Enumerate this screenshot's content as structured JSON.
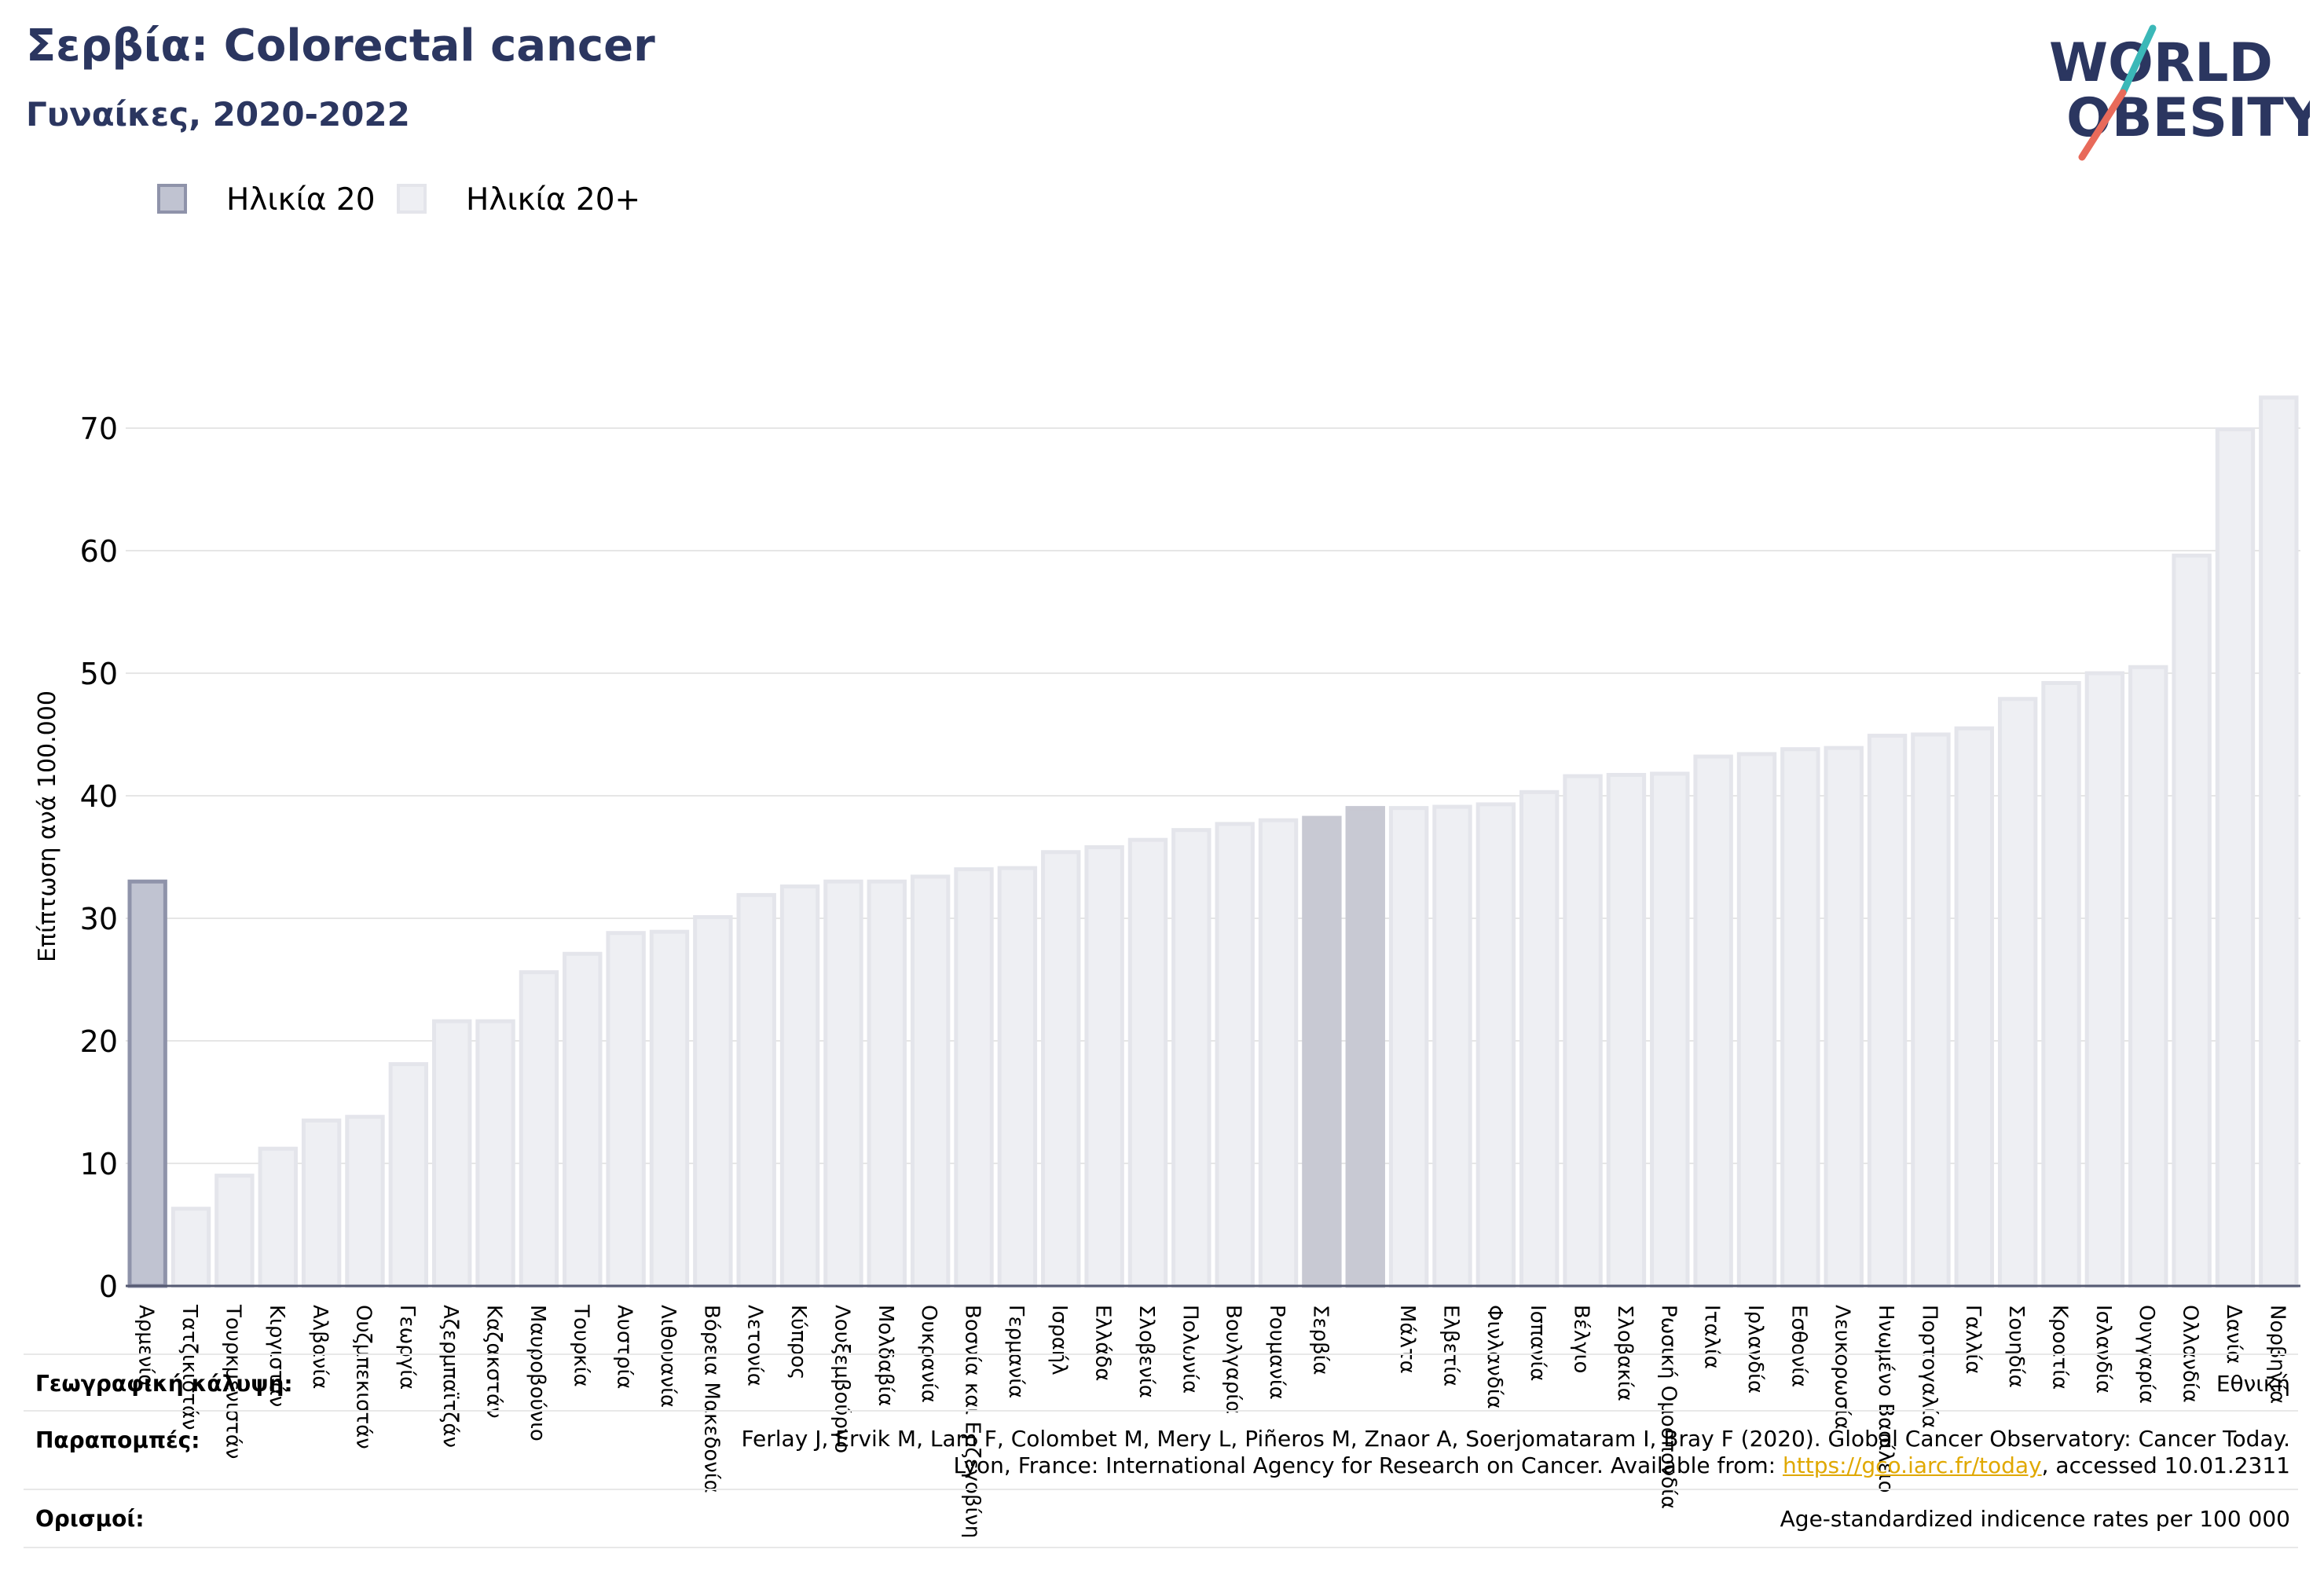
{
  "header": {
    "title": "Σερβία: Colorectal cancer",
    "subtitle": "Γυναίκες, 2020-2022"
  },
  "logo": {
    "line1": "WORLD",
    "line2": "OBESITY",
    "icon": "world-obesity-logo"
  },
  "legend": {
    "items": [
      {
        "label": "Ηλικία 20",
        "color": "#c0c3d1",
        "border": "#8f93aa"
      },
      {
        "label": "Ηλικία 20+",
        "color": "#eeeff3",
        "border": "#e4e5eb"
      }
    ]
  },
  "chart_data": {
    "type": "bar",
    "ylabel": "Επίπτωση ανά 100.000",
    "xlabel": "",
    "ylim": [
      0,
      75
    ],
    "yticks": [
      0,
      10,
      20,
      30,
      40,
      50,
      60,
      70
    ],
    "grid": true,
    "legend_position": "top-left",
    "categories": [
      "Αρμενία",
      "Τατζικιστάν",
      "Τουρκμενιστάν",
      "Κιργιστάν",
      "Αλβανία",
      "Ουζμπεκιστάν",
      "Γεωργία",
      "Αζερμπαϊτζάν",
      "Καζακστάν",
      "Μαυροβούνιο",
      "Τουρκία",
      "Αυστρία",
      "Λιθουανία",
      "Βόρεια Μακεδονία",
      "Λετονία",
      "Κύπρος",
      "Λουξεμβούργο",
      "Μολδαβία",
      "Ουκρανία",
      "Βοσνία και Ερζεγοβίνη",
      "Γερμανία",
      "Ισραήλ",
      "Ελλάδα",
      "Σλοβενία",
      "Πολωνία",
      "Βουλγαρία",
      "Ρουμανία",
      "Σερβία",
      "",
      "Μάλτα",
      "Ελβετία",
      "Φινλανδία",
      "Ισπανία",
      "Βέλγιο",
      "Σλοβακία",
      "Ρωσική Ομοσπονδία",
      "Ιταλία",
      "Ιρλανδία",
      "Εσθονία",
      "Λευκορωσία",
      "Ηνωμένο Βασίλειο",
      "Πορτογαλία",
      "Γαλλία",
      "Σουηδία",
      "Κροατία",
      "Ισλανδία",
      "Ουγγαρία",
      "Ολλανδία",
      "Δανία",
      "Νορβηγία"
    ],
    "series": [
      {
        "name": "Ηλικία 20",
        "values": [
          33.0,
          null,
          null,
          null,
          null,
          null,
          null,
          null,
          null,
          null,
          null,
          null,
          null,
          null,
          null,
          null,
          null,
          null,
          null,
          null,
          null,
          null,
          null,
          null,
          null,
          null,
          null,
          null,
          null,
          null,
          null,
          null,
          null,
          null,
          null,
          null,
          null,
          null,
          null,
          null,
          null,
          null,
          null,
          null,
          null,
          null,
          null,
          null,
          null,
          null
        ]
      },
      {
        "name": "Ηλικία 20+",
        "values": [
          null,
          6.3,
          9.0,
          11.2,
          13.5,
          13.8,
          18.1,
          21.6,
          21.6,
          25.6,
          27.1,
          28.8,
          28.9,
          30.1,
          31.9,
          32.6,
          33.0,
          33.0,
          33.4,
          34.0,
          34.1,
          35.4,
          35.8,
          36.4,
          37.2,
          37.7,
          38.0,
          38.2,
          39.0,
          39.0,
          39.1,
          39.3,
          40.3,
          41.6,
          41.7,
          41.8,
          43.2,
          43.4,
          43.8,
          43.9,
          44.9,
          45.0,
          45.5,
          47.9,
          49.2,
          50.0,
          50.5,
          59.6,
          69.9,
          72.5
        ]
      }
    ],
    "highlight_color": "#c8c9d3"
  },
  "footer": {
    "coverage_label": "Γεωγραφική κάλυψη:",
    "coverage_value": "Εθνική",
    "references_label": "Παραπομπές:",
    "references_line1": "Ferlay J, Ervik M, Lam F, Colombet M, Mery L, Piñeros M, Znaor A, Soerjomataram I, Bray F (2020). Global Cancer Observatory: Cancer Today.",
    "references_line2_pre": "Lyon, France: International Agency for Research on Cancer. Available from: ",
    "references_link": "https://gco.iarc.fr/today",
    "references_line2_post": ", accessed 10.01.2311",
    "definitions_label": "Ορισμοί:",
    "definitions_value": "Age-standardized indicence rates per 100 000"
  }
}
